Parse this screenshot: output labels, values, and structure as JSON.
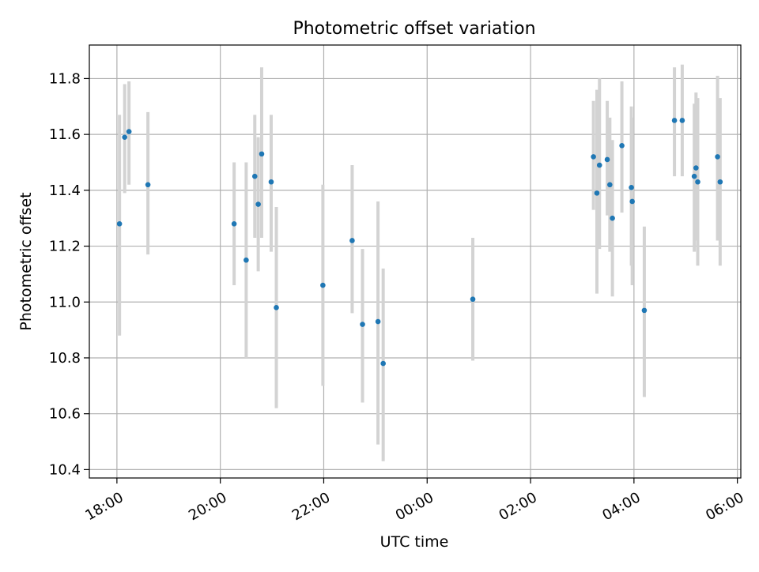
{
  "chart_data": {
    "type": "scatter",
    "title": "Photometric offset variation",
    "xlabel": "UTC time",
    "ylabel": "Photometric offset",
    "x_axis_kind": "time",
    "x_tick_labels": [
      "18:00",
      "20:00",
      "22:00",
      "00:00",
      "02:00",
      "04:00",
      "06:00"
    ],
    "y_tick_labels": [
      "10.4",
      "10.6",
      "10.8",
      "11.0",
      "11.2",
      "11.4",
      "11.6",
      "11.8"
    ],
    "xlim": [
      "17:28",
      "06:04"
    ],
    "ylim": [
      10.37,
      11.92
    ],
    "grid": true,
    "legend": false,
    "colors": {
      "point": "#1f77b4",
      "errorbar": "#d3d3d3",
      "grid": "#b0b0b0"
    },
    "series": [
      {
        "points": [
          {
            "x": "18:03",
            "y": 11.28,
            "low": 10.88,
            "high": 11.67
          },
          {
            "x": "18:09",
            "y": 11.59,
            "low": 11.39,
            "high": 11.78
          },
          {
            "x": "18:14",
            "y": 11.61,
            "low": 11.42,
            "high": 11.79
          },
          {
            "x": "18:36",
            "y": 11.42,
            "low": 11.17,
            "high": 11.68
          },
          {
            "x": "20:16",
            "y": 11.28,
            "low": 11.06,
            "high": 11.5
          },
          {
            "x": "20:30",
            "y": 11.15,
            "low": 10.8,
            "high": 11.5
          },
          {
            "x": "20:40",
            "y": 11.45,
            "low": 11.23,
            "high": 11.67
          },
          {
            "x": "20:44",
            "y": 11.35,
            "low": 11.11,
            "high": 11.59
          },
          {
            "x": "20:48",
            "y": 11.53,
            "low": 11.23,
            "high": 11.84
          },
          {
            "x": "20:59",
            "y": 11.43,
            "low": 11.18,
            "high": 11.67
          },
          {
            "x": "21:05",
            "y": 10.98,
            "low": 10.62,
            "high": 11.34
          },
          {
            "x": "21:59",
            "y": 11.06,
            "low": 10.7,
            "high": 11.42
          },
          {
            "x": "22:33",
            "y": 11.22,
            "low": 10.96,
            "high": 11.49
          },
          {
            "x": "22:45",
            "y": 10.92,
            "low": 10.64,
            "high": 11.19
          },
          {
            "x": "23:03",
            "y": 10.93,
            "low": 10.49,
            "high": 11.36
          },
          {
            "x": "23:09",
            "y": 10.78,
            "low": 10.43,
            "high": 11.12
          },
          {
            "x": "00:53",
            "y": 11.01,
            "low": 10.79,
            "high": 11.23
          },
          {
            "x": "03:13",
            "y": 11.52,
            "low": 11.33,
            "high": 11.72
          },
          {
            "x": "03:17",
            "y": 11.39,
            "low": 11.03,
            "high": 11.76
          },
          {
            "x": "03:20",
            "y": 11.49,
            "low": 11.19,
            "high": 11.8
          },
          {
            "x": "03:29",
            "y": 11.51,
            "low": 11.31,
            "high": 11.72
          },
          {
            "x": "03:32",
            "y": 11.42,
            "low": 11.18,
            "high": 11.66
          },
          {
            "x": "03:35",
            "y": 11.3,
            "low": 11.02,
            "high": 11.58
          },
          {
            "x": "03:46",
            "y": 11.56,
            "low": 11.32,
            "high": 11.79
          },
          {
            "x": "03:57",
            "y": 11.41,
            "low": 11.13,
            "high": 11.7
          },
          {
            "x": "03:58",
            "y": 11.36,
            "low": 11.06,
            "high": 11.66
          },
          {
            "x": "04:12",
            "y": 10.97,
            "low": 10.66,
            "high": 11.27
          },
          {
            "x": "04:47",
            "y": 11.65,
            "low": 11.45,
            "high": 11.84
          },
          {
            "x": "04:56",
            "y": 11.65,
            "low": 11.45,
            "high": 11.85
          },
          {
            "x": "05:10",
            "y": 11.45,
            "low": 11.18,
            "high": 11.71
          },
          {
            "x": "05:12",
            "y": 11.48,
            "low": 11.22,
            "high": 11.75
          },
          {
            "x": "05:14",
            "y": 11.43,
            "low": 11.13,
            "high": 11.73
          },
          {
            "x": "05:37",
            "y": 11.52,
            "low": 11.22,
            "high": 11.81
          },
          {
            "x": "05:40",
            "y": 11.43,
            "low": 11.13,
            "high": 11.73
          }
        ]
      }
    ]
  }
}
